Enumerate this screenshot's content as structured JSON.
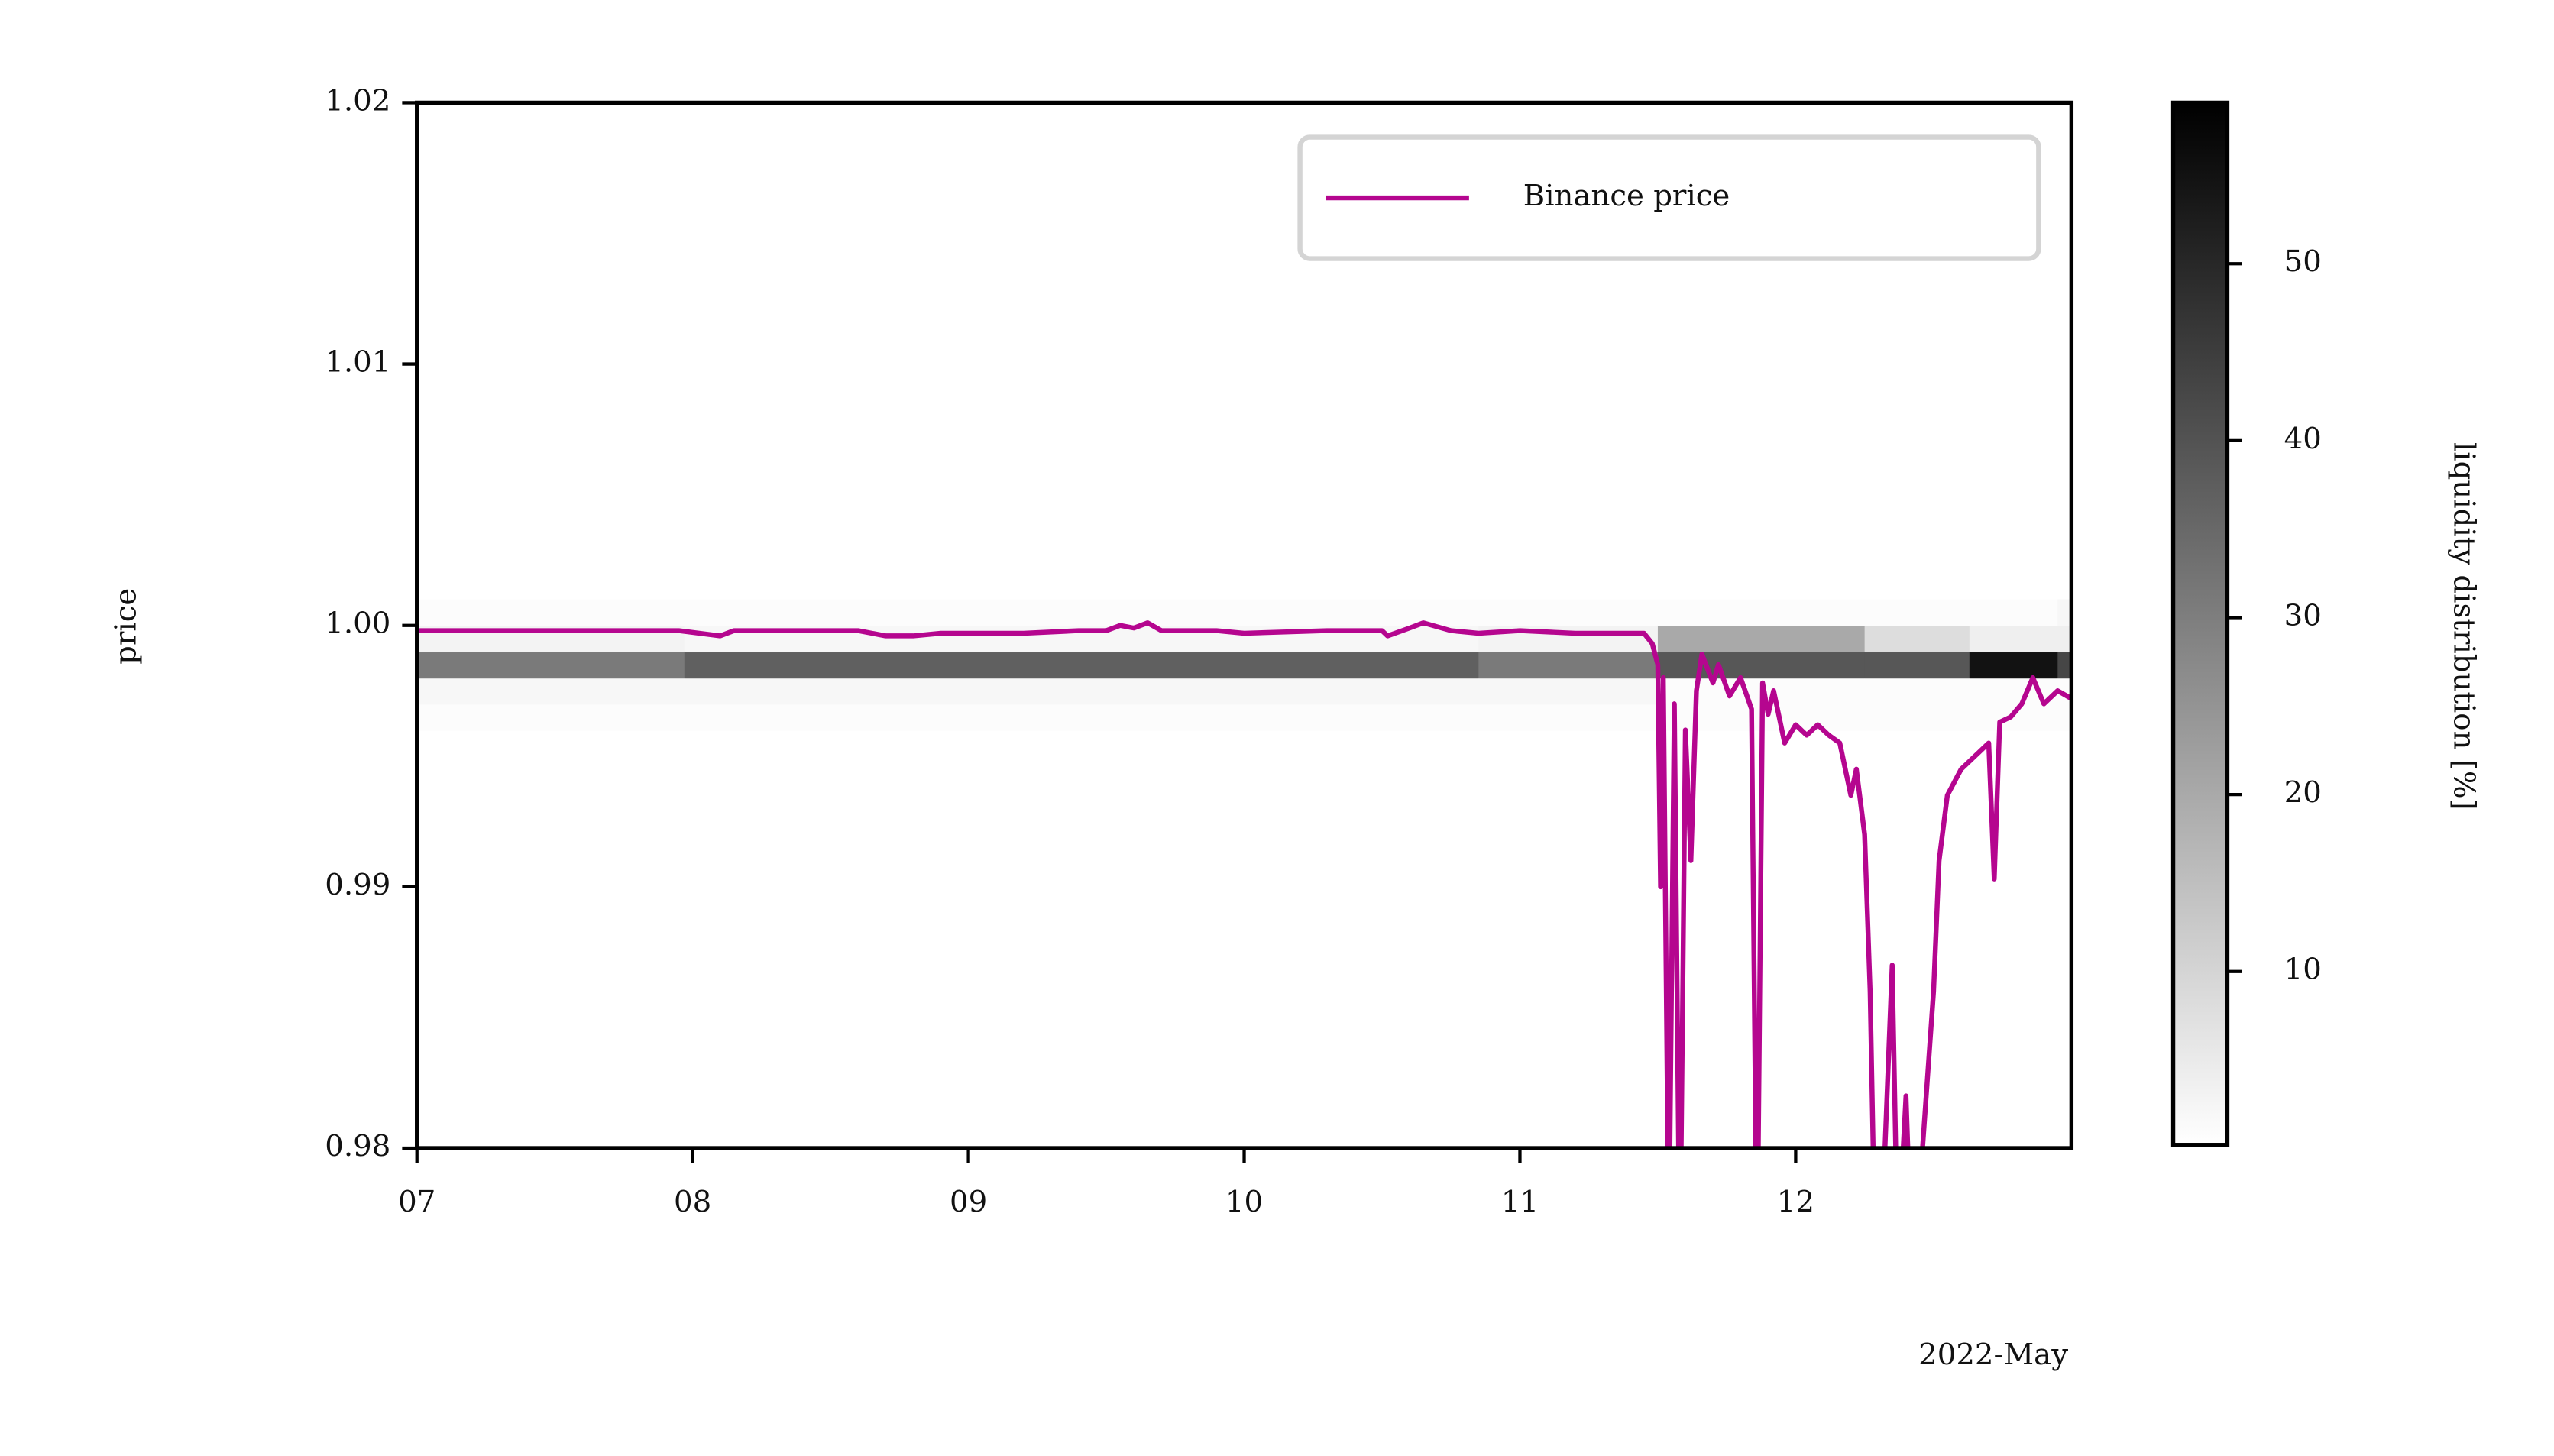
{
  "chart_data": {
    "type": "line",
    "ylabel": "price",
    "x_offset_label": "2022-May",
    "xlim": [
      7,
      13
    ],
    "ylim": [
      0.98,
      1.02
    ],
    "xticks": [
      {
        "value": 7,
        "label": "07"
      },
      {
        "value": 8,
        "label": "08"
      },
      {
        "value": 9,
        "label": "09"
      },
      {
        "value": 10,
        "label": "10"
      },
      {
        "value": 11,
        "label": "11"
      },
      {
        "value": 12,
        "label": "12"
      }
    ],
    "yticks": [
      0.98,
      0.99,
      {
        "value": 1.0,
        "label": "1.00"
      },
      1.01,
      1.02
    ],
    "legend": "upper right",
    "x": [
      7.0,
      7.95,
      8.1,
      8.15,
      8.6,
      8.7,
      8.8,
      8.9,
      9.2,
      9.4,
      9.5,
      9.55,
      9.6,
      9.65,
      9.7,
      9.9,
      10.0,
      10.3,
      10.5,
      10.52,
      10.6,
      10.65,
      10.75,
      10.85,
      11.0,
      11.2,
      11.45,
      11.48,
      11.5,
      11.51,
      11.52,
      11.54,
      11.56,
      11.58,
      11.6,
      11.62,
      11.64,
      11.66,
      11.7,
      11.72,
      11.76,
      11.8,
      11.84,
      11.86,
      11.88,
      11.9,
      11.92,
      11.96,
      12.0,
      12.04,
      12.08,
      12.12,
      12.16,
      12.2,
      12.22,
      12.25,
      12.27,
      12.29,
      12.32,
      12.35,
      12.37,
      12.4,
      12.42,
      12.46,
      12.5,
      12.52,
      12.55,
      12.6,
      12.65,
      12.7,
      12.72,
      12.74,
      12.78,
      12.82,
      12.86,
      12.9,
      12.95,
      13.0
    ],
    "series": [
      {
        "name": "Binance price",
        "color": "#b5068f",
        "values": [
          0.9998,
          0.9998,
          0.9996,
          0.9998,
          0.9998,
          0.9996,
          0.9996,
          0.9997,
          0.9997,
          0.9998,
          0.9998,
          1.0,
          0.9999,
          1.0001,
          0.9998,
          0.9998,
          0.9997,
          0.9998,
          0.9998,
          0.9996,
          0.9999,
          1.0001,
          0.9998,
          0.9997,
          0.9998,
          0.9997,
          0.9997,
          0.9993,
          0.9985,
          0.99,
          0.998,
          0.976,
          0.997,
          0.975,
          0.996,
          0.991,
          0.9975,
          0.9989,
          0.9978,
          0.9985,
          0.9973,
          0.998,
          0.9968,
          0.975,
          0.9978,
          0.9966,
          0.9975,
          0.9955,
          0.9962,
          0.9958,
          0.9962,
          0.9958,
          0.9955,
          0.9935,
          0.9945,
          0.992,
          0.986,
          0.975,
          0.979,
          0.987,
          0.976,
          0.982,
          0.976,
          0.98,
          0.986,
          0.991,
          0.9935,
          0.9945,
          0.995,
          0.9955,
          0.9903,
          0.9963,
          0.9965,
          0.997,
          0.998,
          0.997,
          0.9975,
          0.9972
        ]
      }
    ],
    "heatmap": {
      "cmap": "Greys",
      "label": "liquidity distribution [%]",
      "clim": [
        0.2,
        59.1
      ],
      "cticks": [
        10,
        20,
        30,
        40,
        50
      ],
      "x_edges": [
        7,
        7.97,
        10.85,
        11.5,
        12.25,
        12.63,
        12.95,
        13
      ],
      "y_edges": [
        0.996,
        0.997,
        0.998,
        0.999,
        1.0,
        1.001
      ],
      "values": [
        [
          1,
          2,
          31,
          3,
          1
        ],
        [
          1,
          2,
          37,
          2,
          1
        ],
        [
          1,
          2,
          31,
          3,
          1
        ],
        [
          1,
          1,
          39,
          20,
          1
        ],
        [
          1,
          1,
          39,
          8,
          1
        ],
        [
          1,
          1,
          55,
          4,
          1
        ],
        [
          1,
          1,
          43,
          4,
          2
        ]
      ]
    }
  }
}
